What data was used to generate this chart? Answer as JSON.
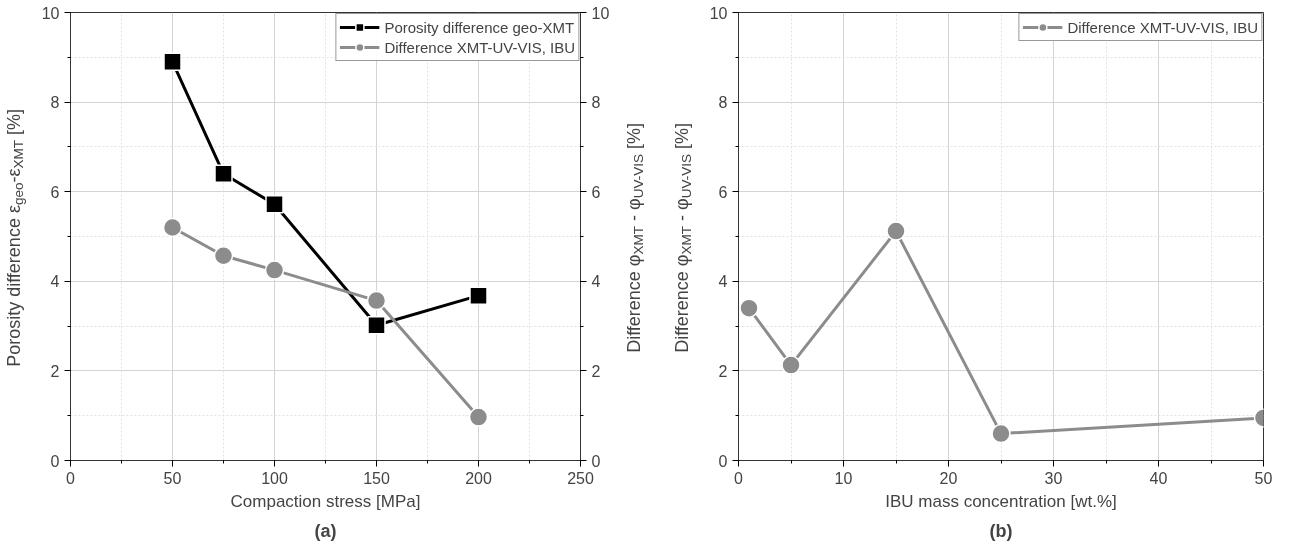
{
  "chart_data": [
    {
      "type": "line",
      "title": "(a)",
      "xlabel": "Compaction stress [MPa]",
      "ylabel": "Porosity difference ε$_{geo}$-ε$_{XMT}$ [%]",
      "y2label": "Difference φ$_{XMT}$ - φ$_{UV-VIS}$ [%]",
      "x": [
        50,
        75,
        100,
        150,
        200
      ],
      "series": [
        {
          "name": "Porosity difference geo-XMT",
          "color": "#000000",
          "marker": "square",
          "values": [
            8.9,
            6.4,
            5.72,
            3.02,
            3.68
          ]
        },
        {
          "name": "Difference XMT-UV-VIS, IBU",
          "color": "#8c8c8c",
          "marker": "circle",
          "values": [
            5.2,
            4.57,
            4.25,
            3.57,
            0.97
          ]
        }
      ],
      "xlim": [
        0,
        250
      ],
      "xticks": [
        0,
        50,
        100,
        150,
        200,
        250
      ],
      "ylim": [
        0,
        10
      ],
      "yticks": [
        0,
        2,
        4,
        6,
        8,
        10
      ],
      "y2lim": [
        0,
        10
      ],
      "y2ticks": [
        0,
        2,
        4,
        6,
        8,
        10
      ],
      "grid": true,
      "legend": "top right",
      "line_style": "solid"
    },
    {
      "type": "line",
      "title": "(b)",
      "xlabel": "IBU mass concentration [wt.%]",
      "ylabel": "Difference φ$_{XMT}$ - φ$_{UV-VIS}$ [%]",
      "x": [
        1,
        5,
        15,
        25,
        50
      ],
      "series": [
        {
          "name": "Difference XMT-UV-VIS, IBU",
          "color": "#8c8c8c",
          "marker": "circle",
          "values": [
            3.4,
            2.13,
            5.12,
            0.6,
            0.95
          ]
        }
      ],
      "xlim": [
        0,
        50
      ],
      "xticks": [
        0,
        10,
        20,
        30,
        40,
        50
      ],
      "ylim": [
        0,
        10
      ],
      "yticks": [
        0,
        2,
        4,
        6,
        8,
        10
      ],
      "grid": true,
      "legend": "top right",
      "line_style": "solid"
    }
  ]
}
